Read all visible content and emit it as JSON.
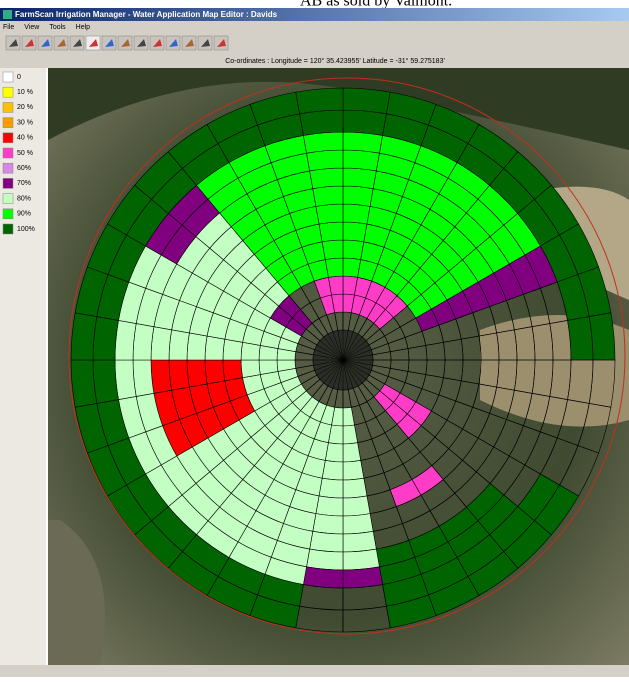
{
  "top_caption": "AB as sold by Valmont.",
  "window": {
    "title": "FarmScan Irrigation Manager - Water Application Map Editor : Davids",
    "menu": [
      "File",
      "View",
      "Tools",
      "Help"
    ],
    "coordinates": "Co-ordinates : Longitude = 120° 35.423955' Latitude = -31° 59.275183'"
  },
  "legend": [
    {
      "label": "0",
      "color": "#ffffff"
    },
    {
      "label": "10 %",
      "color": "#ffff00"
    },
    {
      "label": "20 %",
      "color": "#ffc000"
    },
    {
      "label": "30 %",
      "color": "#ff9900"
    },
    {
      "label": "40 %",
      "color": "#ff0000"
    },
    {
      "label": "50 %",
      "color": "#ff3cc8"
    },
    {
      "label": "60%",
      "color": "#d787e6"
    },
    {
      "label": "70%",
      "color": "#800080"
    },
    {
      "label": "80%",
      "color": "#c3ffc3"
    },
    {
      "label": "90%",
      "color": "#00ff00"
    },
    {
      "label": "100%",
      "color": "#006400"
    }
  ]
}
